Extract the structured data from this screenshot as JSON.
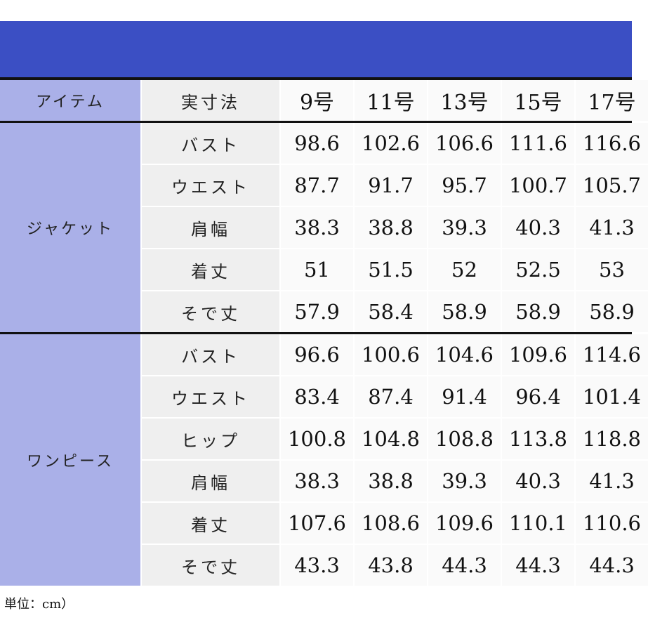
{
  "header": {
    "item": "アイテム",
    "measure": "実寸法",
    "sizes": [
      "9号",
      "11号",
      "13号",
      "15号",
      "17号"
    ]
  },
  "groups": [
    {
      "item": "ジャケット",
      "rows": [
        {
          "label": "バスト",
          "values": [
            "98.6",
            "102.6",
            "106.6",
            "111.6",
            "116.6"
          ]
        },
        {
          "label": "ウエスト",
          "values": [
            "87.7",
            "91.7",
            "95.7",
            "100.7",
            "105.7"
          ]
        },
        {
          "label": "肩幅",
          "values": [
            "38.3",
            "38.8",
            "39.3",
            "40.3",
            "41.3"
          ]
        },
        {
          "label": "着丈",
          "values": [
            "51",
            "51.5",
            "52",
            "52.5",
            "53"
          ]
        },
        {
          "label": "そで丈",
          "values": [
            "57.9",
            "58.4",
            "58.9",
            "58.9",
            "58.9"
          ]
        }
      ]
    },
    {
      "item": "ワンピース",
      "rows": [
        {
          "label": "バスト",
          "values": [
            "96.6",
            "100.6",
            "104.6",
            "109.6",
            "114.6"
          ]
        },
        {
          "label": "ウエスト",
          "values": [
            "83.4",
            "87.4",
            "91.4",
            "96.4",
            "101.4"
          ]
        },
        {
          "label": "ヒップ",
          "values": [
            "100.8",
            "104.8",
            "108.8",
            "113.8",
            "118.8"
          ]
        },
        {
          "label": "肩幅",
          "values": [
            "38.3",
            "38.8",
            "39.3",
            "40.3",
            "41.3"
          ]
        },
        {
          "label": "着丈",
          "values": [
            "107.6",
            "108.6",
            "109.6",
            "110.1",
            "110.6"
          ]
        },
        {
          "label": "そで丈",
          "values": [
            "43.3",
            "43.8",
            "44.3",
            "44.3",
            "44.3"
          ]
        }
      ]
    }
  ],
  "footnote": "単位：cm）",
  "colors": {
    "banner": "#3b4fc4",
    "item_column": "#aab0e8",
    "label_column": "#efefef",
    "value_cells": "#fafafa"
  }
}
